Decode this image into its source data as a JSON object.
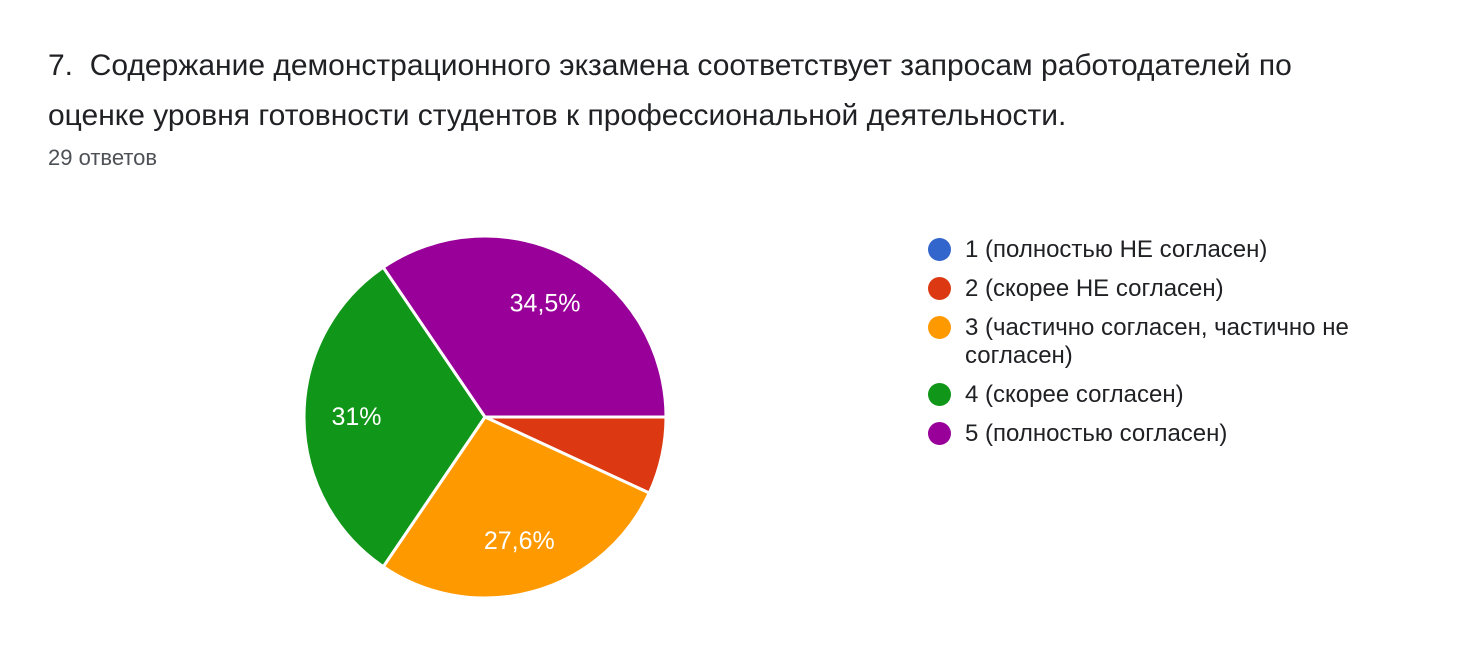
{
  "question": {
    "title": "7.  Содержание демонстрационного экзамена соответствует запросам работодателей по\nоценке уровня готовности студентов к профессиональной деятельности.",
    "responses_count": "29 ответов"
  },
  "chart_data": {
    "type": "pie",
    "title": "",
    "total_responses": 29,
    "legend_position": "right",
    "start_angle_deg": 0,
    "start_edge": "east",
    "direction": "clockwise",
    "background": "#ffffff",
    "slice_border_color": "#ffffff",
    "slices": [
      {
        "label": "1 (полностью НЕ согласен)",
        "value_percent": 0,
        "color": "#3366CC",
        "data_label": ""
      },
      {
        "label": "2 (скорее НЕ согласен)",
        "value_percent": 6.9,
        "color": "#DC3912",
        "data_label": ""
      },
      {
        "label": "3 (частично согласен, частично не согласен)",
        "value_percent": 27.6,
        "color": "#FF9900",
        "data_label": "27,6%"
      },
      {
        "label": "4 (скорее согласен)",
        "value_percent": 31,
        "color": "#109618",
        "data_label": "31%"
      },
      {
        "label": "5 (полностью согласен)",
        "value_percent": 34.5,
        "color": "#990099",
        "data_label": "34,5%"
      }
    ]
  }
}
